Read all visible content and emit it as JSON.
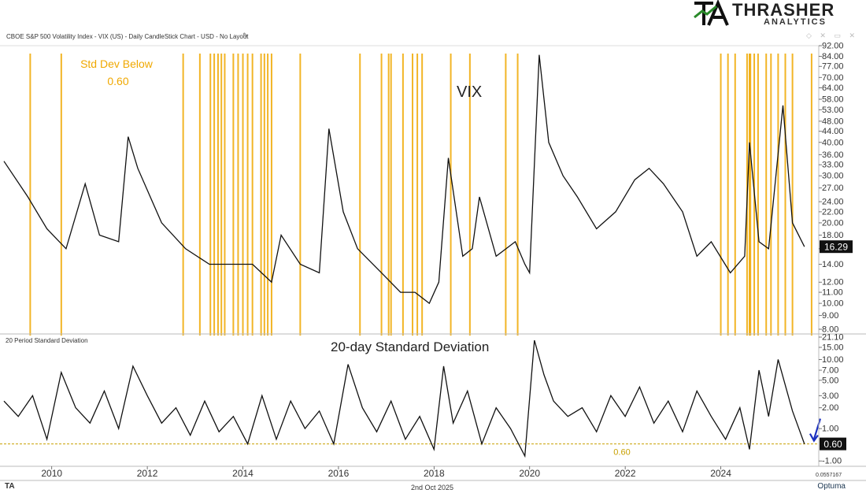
{
  "header": {
    "title": "CBOE S&P 500 Volatility Index - VIX (US) - Daily CandleStick Chart - USD - No Layout",
    "logo_name": "THRASHER",
    "logo_sub": "ANALYTICS"
  },
  "footer": {
    "date": "2nd Oct 2025",
    "brand": "Optuma",
    "corner_value": "0.0557167"
  },
  "colors": {
    "highlight": "#f0a800",
    "line": "#111111",
    "arrow": "#1a2fbf",
    "threshold": "#c8a000"
  },
  "chart_data": [
    {
      "type": "line",
      "title": "VIX",
      "scale": "log",
      "annotation": [
        "Std Dev Below",
        "0.60"
      ],
      "x": [
        2009.0,
        2009.5,
        2009.9,
        2010.3,
        2010.7,
        2011.0,
        2011.4,
        2011.6,
        2011.8,
        2012.3,
        2012.8,
        2013.3,
        2013.8,
        2014.2,
        2014.6,
        2014.8,
        2015.2,
        2015.6,
        2015.8,
        2016.1,
        2016.4,
        2016.9,
        2017.3,
        2017.6,
        2017.9,
        2018.1,
        2018.3,
        2018.6,
        2018.8,
        2018.95,
        2019.3,
        2019.7,
        2019.9,
        2020.0,
        2020.2,
        2020.4,
        2020.7,
        2021.0,
        2021.4,
        2021.8,
        2022.2,
        2022.5,
        2022.8,
        2023.2,
        2023.5,
        2023.8,
        2024.2,
        2024.5,
        2024.6,
        2024.8,
        2025.0,
        2025.3,
        2025.5,
        2025.75
      ],
      "y": [
        34,
        25,
        19,
        16,
        28,
        18,
        17,
        42,
        32,
        20,
        16,
        14,
        14,
        14,
        12,
        18,
        14,
        13,
        45,
        22,
        16,
        13,
        11,
        11,
        10,
        12,
        35,
        15,
        16,
        25,
        15,
        17,
        14,
        13,
        85,
        40,
        30,
        25,
        19,
        22,
        29,
        32,
        28,
        22,
        15,
        17,
        13,
        15,
        40,
        17,
        16,
        55,
        20,
        16.29
      ],
      "last_value": "16.29",
      "yticks": [
        "92.00",
        "84.00",
        "77.00",
        "70.00",
        "64.00",
        "58.00",
        "53.00",
        "48.00",
        "44.00",
        "40.00",
        "36.00",
        "33.00",
        "30.00",
        "27.00",
        "24.00",
        "22.00",
        "20.00",
        "18.00",
        "16.00",
        "14.00",
        "12.00",
        "11.00",
        "10.00",
        "9.00",
        "8.00"
      ],
      "highlight_bands": [
        2009.55,
        2010.2,
        2012.75,
        2013.1,
        2013.32,
        2013.4,
        2013.48,
        2013.55,
        2013.62,
        2013.8,
        2013.9,
        2014.0,
        2014.1,
        2014.2,
        2014.38,
        2014.45,
        2014.52,
        2014.6,
        2015.2,
        2016.45,
        2016.9,
        2017.05,
        2017.1,
        2017.35,
        2017.55,
        2017.65,
        2017.75,
        2018.35,
        2018.75,
        2019.5,
        2019.75,
        2024.0,
        2024.15,
        2024.3,
        2024.55,
        2024.6,
        2024.62,
        2024.7,
        2024.78,
        2024.95,
        2025.05,
        2025.2,
        2025.35,
        2025.5,
        2025.9,
        2026.1,
        2026.25
      ]
    },
    {
      "type": "line",
      "title": "20-day Standard Deviation",
      "panel_label": "20 Period Standard Deviation",
      "scale": "log",
      "threshold": 0.6,
      "threshold_label": "0.60",
      "last_value": "0.60",
      "x": [
        2009.0,
        2009.3,
        2009.6,
        2009.9,
        2010.2,
        2010.5,
        2010.8,
        2011.1,
        2011.4,
        2011.7,
        2012.0,
        2012.3,
        2012.6,
        2012.9,
        2013.2,
        2013.5,
        2013.8,
        2014.1,
        2014.4,
        2014.7,
        2015.0,
        2015.3,
        2015.6,
        2015.9,
        2016.2,
        2016.5,
        2016.8,
        2017.1,
        2017.4,
        2017.7,
        2018.0,
        2018.2,
        2018.4,
        2018.7,
        2019.0,
        2019.3,
        2019.6,
        2019.9,
        2020.1,
        2020.3,
        2020.5,
        2020.8,
        2021.1,
        2021.4,
        2021.7,
        2022.0,
        2022.3,
        2022.6,
        2022.9,
        2023.2,
        2023.5,
        2023.8,
        2024.1,
        2024.4,
        2024.6,
        2024.8,
        2025.0,
        2025.2,
        2025.5,
        2025.75
      ],
      "y": [
        2.5,
        1.5,
        3.0,
        0.7,
        6.5,
        2.0,
        1.2,
        3.5,
        1.0,
        8.0,
        3.0,
        1.2,
        2.0,
        0.8,
        2.5,
        0.9,
        1.5,
        0.6,
        3.0,
        0.7,
        2.5,
        1.0,
        1.8,
        0.6,
        8.5,
        2.0,
        0.9,
        2.5,
        0.7,
        1.5,
        0.5,
        8.0,
        1.2,
        3.5,
        0.6,
        2.0,
        1.0,
        0.4,
        19.0,
        6.0,
        2.5,
        1.5,
        2.0,
        0.9,
        3.0,
        1.5,
        4.0,
        1.2,
        2.5,
        0.9,
        3.5,
        1.5,
        0.7,
        2.0,
        0.5,
        7.0,
        1.5,
        10.0,
        1.8,
        0.6
      ],
      "yticks": [
        "21.10",
        "15.00",
        "10.00",
        "7.00",
        "5.00",
        "3.00",
        "2.00",
        "1.00",
        "-1.00"
      ],
      "xticks": [
        "2010",
        "2012",
        "2014",
        "2016",
        "2018",
        "2020",
        "2022",
        "2024"
      ],
      "xtick_values": [
        2010,
        2012,
        2014,
        2016,
        2018,
        2020,
        2022,
        2024
      ]
    }
  ]
}
